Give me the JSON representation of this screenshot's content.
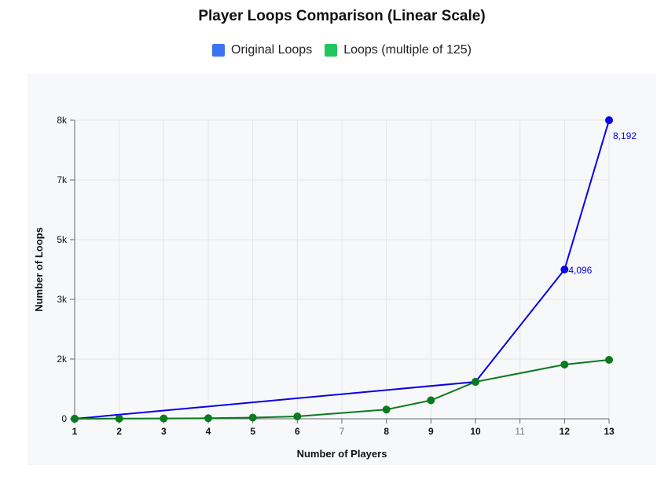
{
  "chart_data": {
    "type": "line",
    "title": "Player Loops Comparison (Linear Scale)",
    "xlabel": "Number of Players",
    "ylabel": "Number of Loops",
    "x_ticks": [
      {
        "label": "1",
        "bold": true
      },
      {
        "label": "2",
        "bold": true
      },
      {
        "label": "3",
        "bold": true
      },
      {
        "label": "4",
        "bold": true
      },
      {
        "label": "5",
        "bold": true
      },
      {
        "label": "6",
        "bold": true
      },
      {
        "label": "7",
        "bold": false
      },
      {
        "label": "8",
        "bold": true
      },
      {
        "label": "9",
        "bold": true
      },
      {
        "label": "10",
        "bold": true
      },
      {
        "label": "11",
        "bold": false
      },
      {
        "label": "12",
        "bold": true
      },
      {
        "label": "13",
        "bold": true
      }
    ],
    "y_ticks": [
      "0",
      "2k",
      "3k",
      "5k",
      "7k",
      "8k"
    ],
    "grid": true,
    "legend_position": "top-center",
    "series": [
      {
        "name": "Original Loops",
        "color": "#0a00e8",
        "legend_color": "#3b73f0",
        "points": [
          {
            "x": "1",
            "y": 0
          },
          {
            "x": "10",
            "y": 1000
          },
          {
            "x": "12",
            "y": 4096
          },
          {
            "x": "13",
            "y": 8192
          }
        ],
        "data_labels": [
          {
            "x": "12",
            "y": 4096,
            "text": "4,096"
          },
          {
            "x": "13",
            "y": 8192,
            "text": "8,192"
          }
        ]
      },
      {
        "name": "Loops (multiple of 125)",
        "color": "#0a7a1e",
        "legend_color": "#22c55e",
        "points": [
          {
            "x": "1",
            "y": 0
          },
          {
            "x": "2",
            "y": 4
          },
          {
            "x": "3",
            "y": 8
          },
          {
            "x": "4",
            "y": 16
          },
          {
            "x": "5",
            "y": 32
          },
          {
            "x": "6",
            "y": 64
          },
          {
            "x": "8",
            "y": 250
          },
          {
            "x": "9",
            "y": 500
          },
          {
            "x": "10",
            "y": 1000
          },
          {
            "x": "12",
            "y": 1500
          },
          {
            "x": "13",
            "y": 1625
          }
        ]
      }
    ]
  }
}
